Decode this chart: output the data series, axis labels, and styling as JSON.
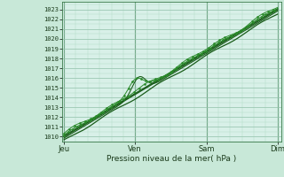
{
  "xlabel": "Pression niveau de la mer( hPa )",
  "bg_color": "#c8e8d8",
  "plot_bg_color": "#d8f0e8",
  "grid_major_color": "#90c0a8",
  "grid_minor_color": "#b0d8c4",
  "line_dark": "#1a5c1a",
  "line_light": "#2a8a2a",
  "ylim": [
    1009.5,
    1023.8
  ],
  "yticks": [
    1010,
    1011,
    1012,
    1013,
    1014,
    1015,
    1016,
    1017,
    1018,
    1019,
    1020,
    1021,
    1022,
    1023
  ],
  "xtick_labels": [
    "Jeu",
    "Ven",
    "Sam",
    "Dim"
  ],
  "xtick_positions": [
    0,
    1,
    2,
    3
  ],
  "x_start": -0.02,
  "x_end": 3.05
}
